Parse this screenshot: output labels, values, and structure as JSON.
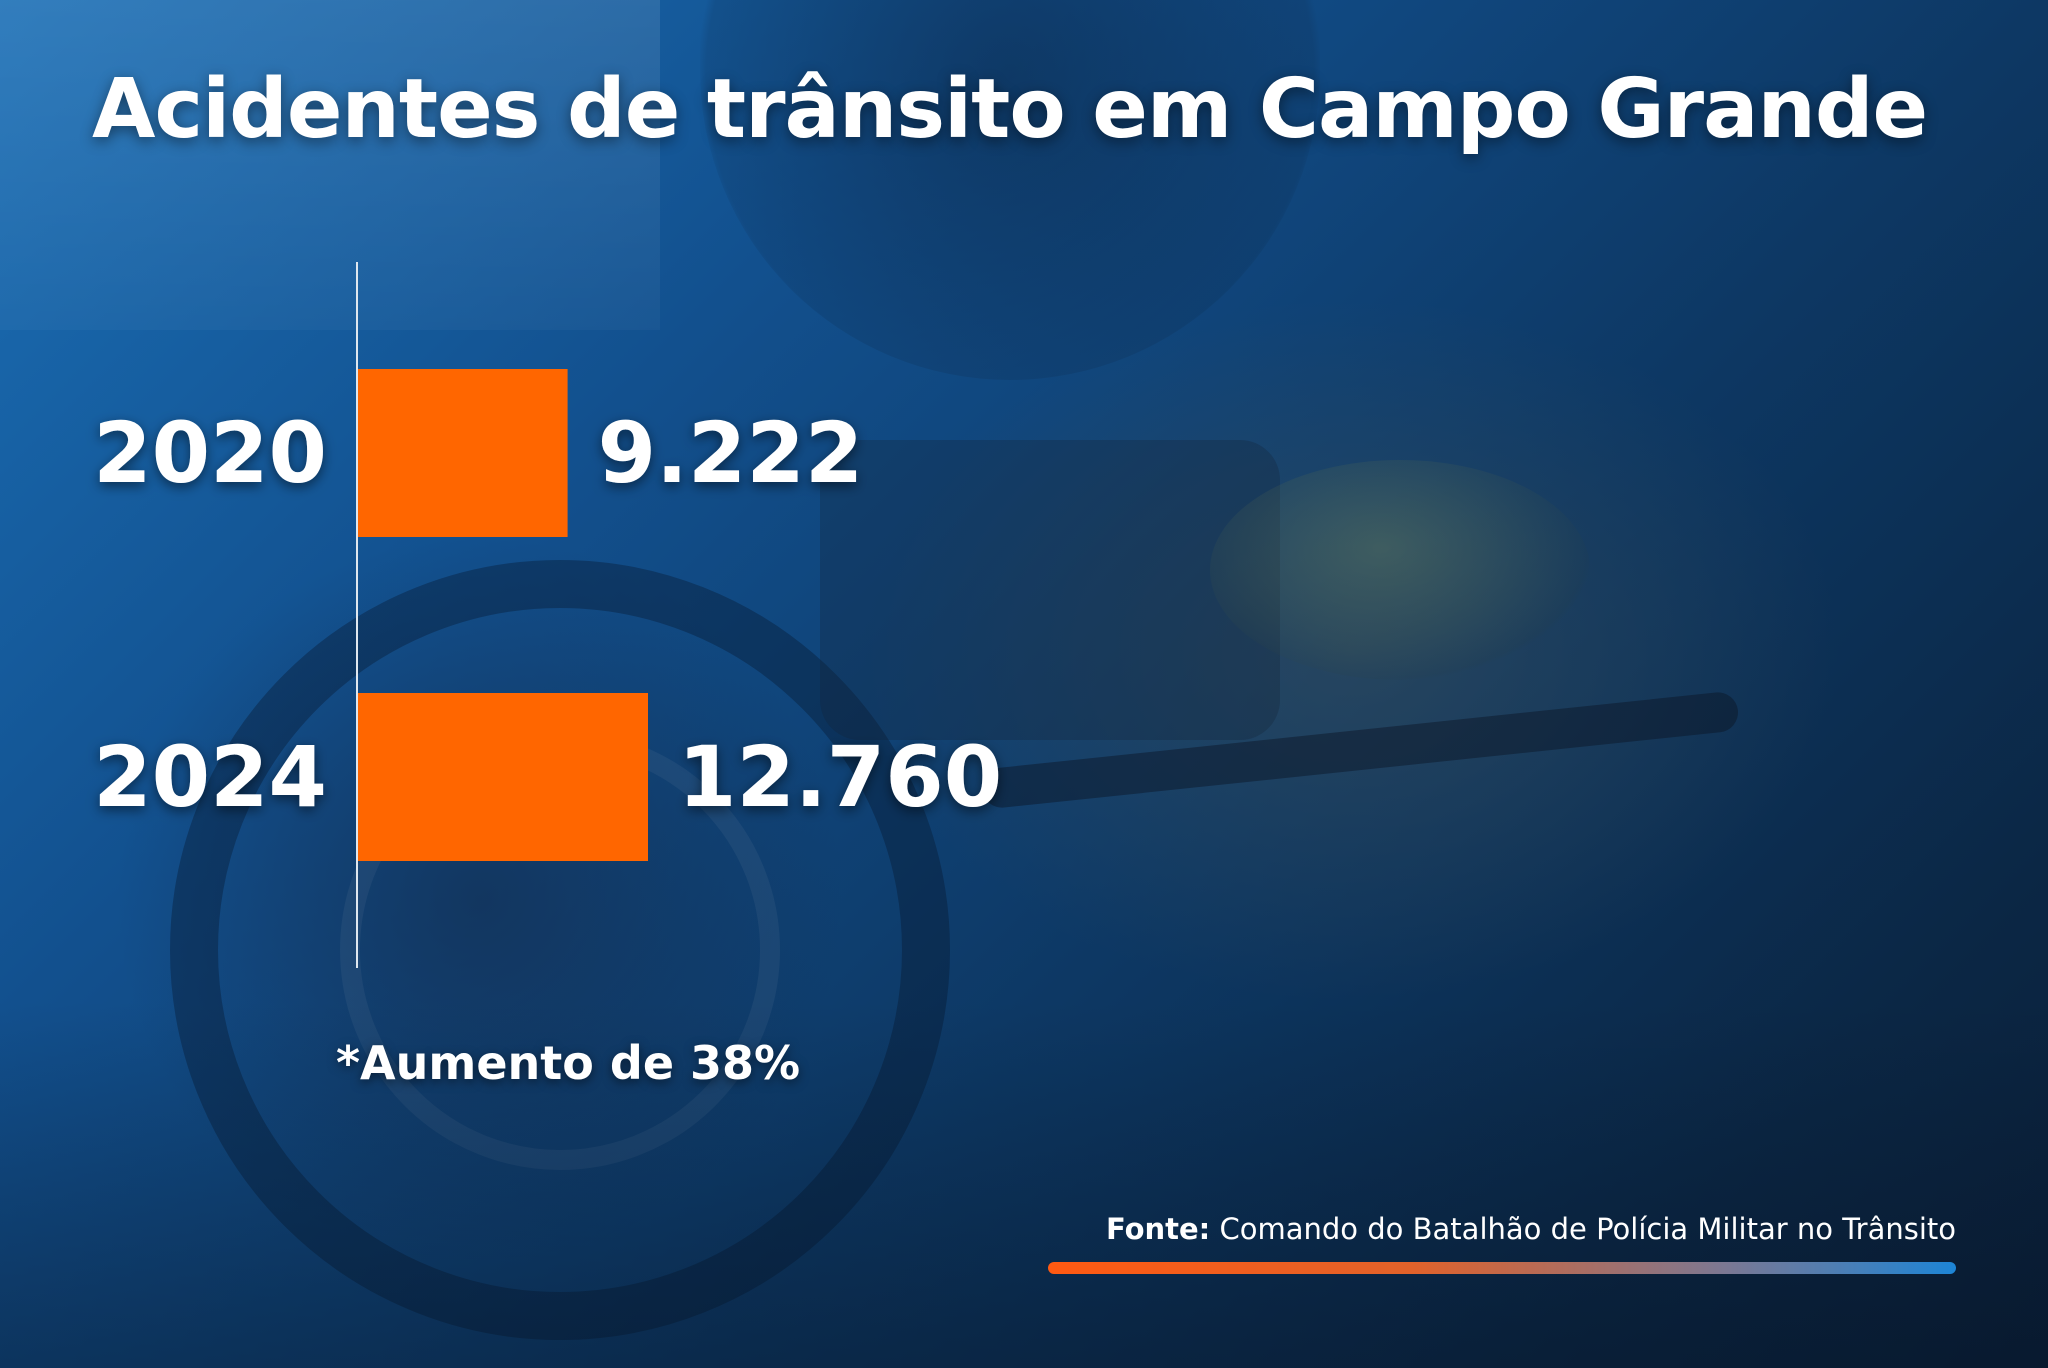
{
  "title": "Acidentes de trânsito em Campo Grande",
  "note": "*Aumento de 38%",
  "source": {
    "label": "Fonte:",
    "text": " Comando do Batalhão de Polícia Militar no Trânsito"
  },
  "colors": {
    "bar": "#ff6600",
    "text": "#ffffff",
    "axis": "#dfe7ef"
  },
  "chart_data": {
    "type": "bar",
    "orientation": "horizontal",
    "categories": [
      "2020",
      "2024"
    ],
    "values": [
      9222,
      12760
    ],
    "value_labels": [
      "9.222",
      "12.760"
    ],
    "title": "Acidentes de trânsito em Campo Grande",
    "xlabel": "",
    "ylabel": "",
    "grid": false,
    "legend": "none"
  }
}
